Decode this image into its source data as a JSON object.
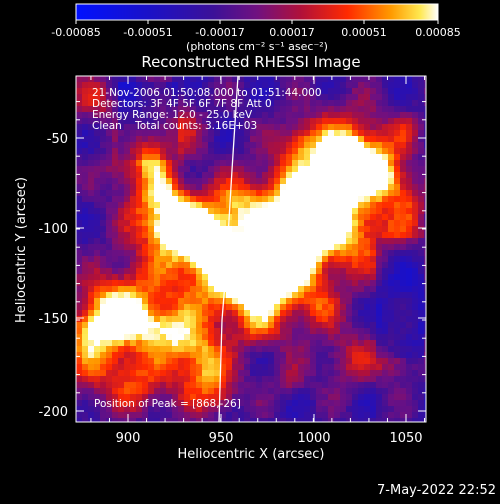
{
  "colorbar": {
    "tick_labels": [
      "-0.00085",
      "-0.00051",
      "-0.00017",
      "0.00017",
      "0.00051",
      "0.00085"
    ],
    "unit_label": "(photons cm⁻² s⁻¹ asec⁻²)",
    "range": [
      -0.00085,
      0.00085
    ]
  },
  "title": "Reconstructed RHESSI Image",
  "info_lines": [
    "21-Nov-2006 01:50:08.000 to 01:51:44.000",
    "Detectors: 3F 4F 5F 6F 7F 8F Att 0",
    "Energy Range: 12.0 - 25.0 keV",
    "Clean    Total counts: 3.16E+03"
  ],
  "peak_text": "Position of Peak = [868,-26]",
  "x_axis": {
    "label": "Heliocentric X (arcsec)",
    "ticks": [
      "900",
      "950",
      "1000",
      "1050"
    ],
    "range": [
      870,
      1060
    ]
  },
  "y_axis": {
    "label": "Heliocentric Y (arcsec)",
    "ticks": [
      "-50",
      "-100",
      "-150",
      "-200"
    ],
    "range": [
      -210,
      -25
    ]
  },
  "footer_date": "7-May-2022 22:52"
}
